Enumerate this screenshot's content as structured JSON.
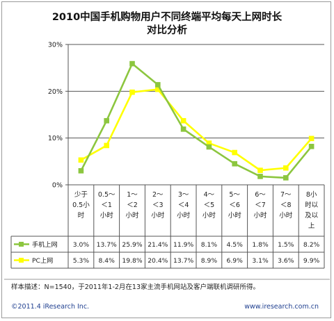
{
  "title_line1": "2010中国手机购物用户不同终端平均每天上网时长",
  "title_line2": "对比分析",
  "footnote": "样本描述：N=1540，于2011年1-2月在13家主流手机网站及客户端联机调研所得。",
  "copyright": "©2011.4 iResearch Inc.",
  "website": "www.iresearch.com.cn",
  "colors": {
    "mobile": "#8cc63f",
    "pc": "#ffff00",
    "grid": "#555555",
    "plot_bg": "#ffffff"
  },
  "chart_data": {
    "type": "line",
    "title": "2010中国手机购物用户不同终端平均每天上网时长对比分析",
    "ylim": [
      0,
      30
    ],
    "yticks": [
      "0%",
      "10%",
      "20%",
      "30%"
    ],
    "grid": true,
    "legend": "table-left",
    "categories": [
      [
        "少于",
        "0.5小",
        "时"
      ],
      [
        "0.5～",
        "＜1",
        "小时"
      ],
      [
        "1～",
        "＜2",
        "小时"
      ],
      [
        "2～",
        "＜3",
        "小时"
      ],
      [
        "3～",
        "＜4",
        "小时"
      ],
      [
        "4～",
        "＜5",
        "小时"
      ],
      [
        "5～",
        "＜6",
        "小时"
      ],
      [
        "6～",
        "＜7",
        "小时"
      ],
      [
        "7～",
        "＜8",
        "小时"
      ],
      [
        "8小",
        "时以",
        "及以",
        "上"
      ]
    ],
    "series": [
      {
        "name": "手机上网",
        "values": [
          3.0,
          13.7,
          25.9,
          21.4,
          11.9,
          8.1,
          4.5,
          1.8,
          1.5,
          8.2
        ],
        "labels": [
          "3.0%",
          "13.7%",
          "25.9%",
          "21.4%",
          "11.9%",
          "8.1%",
          "4.5%",
          "1.8%",
          "1.5%",
          "8.2%"
        ]
      },
      {
        "name": "PC上网",
        "values": [
          5.3,
          8.4,
          19.8,
          20.4,
          13.7,
          8.9,
          6.9,
          3.1,
          3.6,
          9.9
        ],
        "labels": [
          "5.3%",
          "8.4%",
          "19.8%",
          "20.4%",
          "13.7%",
          "8.9%",
          "6.9%",
          "3.1%",
          "3.6%",
          "9.9%"
        ]
      }
    ]
  }
}
